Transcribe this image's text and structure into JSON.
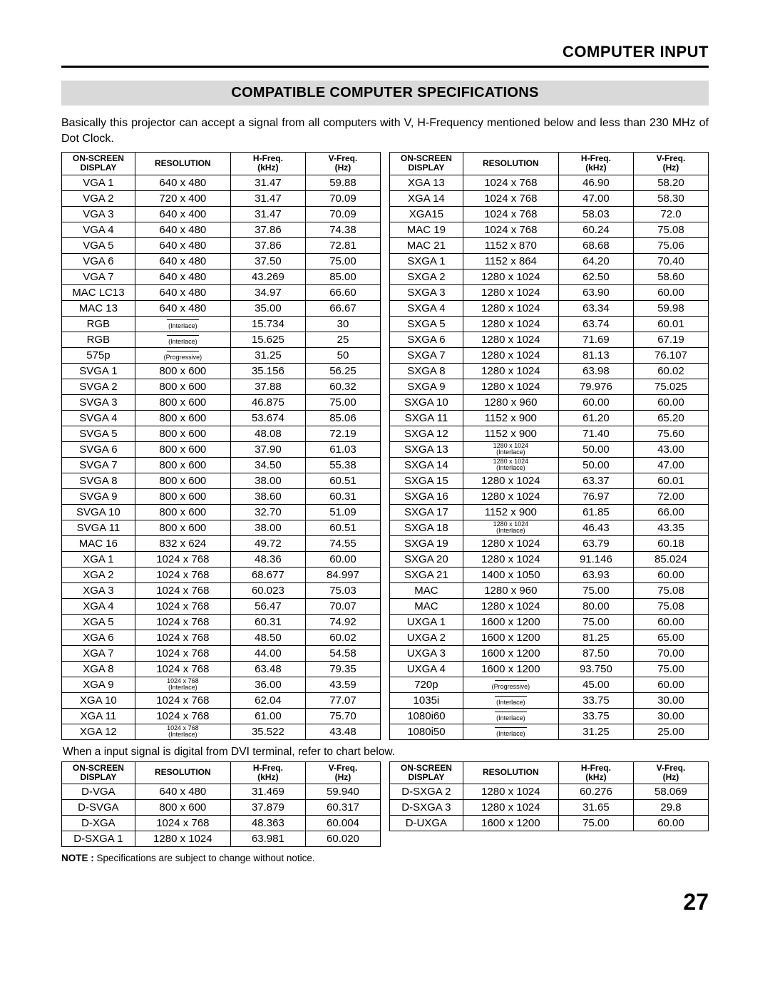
{
  "header": "COMPUTER INPUT",
  "section": "COMPATIBLE COMPUTER SPECIFICATIONS",
  "intro": "Basically this projector can accept a signal from all computers with V, H-Frequency mentioned below and less than 230 MHz of Dot Clock.",
  "table_headers": {
    "c1a": "ON-SCREEN",
    "c1b": "DISPLAY",
    "c2": "RESOLUTION",
    "c3a": "H-Freq.",
    "c3b": "(kHz)",
    "c4a": "V-Freq.",
    "c4b": "(Hz)"
  },
  "left_rows": [
    {
      "d": "VGA 1",
      "r": "640 x 480",
      "h": "31.47",
      "v": "59.88"
    },
    {
      "d": "VGA 2",
      "r": "720 x 400",
      "h": "31.47",
      "v": "70.09"
    },
    {
      "d": "VGA 3",
      "r": "640 x 400",
      "h": "31.47",
      "v": "70.09"
    },
    {
      "d": "VGA 4",
      "r": "640 x 480",
      "h": "37.86",
      "v": "74.38"
    },
    {
      "d": "VGA 5",
      "r": "640 x 480",
      "h": "37.86",
      "v": "72.81"
    },
    {
      "d": "VGA 6",
      "r": "640 x 480",
      "h": "37.50",
      "v": "75.00"
    },
    {
      "d": "VGA 7",
      "r": "640 x 480",
      "h": "43.269",
      "v": "85.00"
    },
    {
      "d": "MAC LC13",
      "r": "640 x 480",
      "h": "34.97",
      "v": "66.60"
    },
    {
      "d": "MAC 13",
      "r": "640 x 480",
      "h": "35.00",
      "v": "66.67"
    },
    {
      "d": "RGB",
      "r": "",
      "rnote": "(Interlace)",
      "dash": true,
      "h": "15.734",
      "v": "30"
    },
    {
      "d": "RGB",
      "r": "",
      "rnote": "(Interlace)",
      "dash": true,
      "h": "15.625",
      "v": "25"
    },
    {
      "d": "575p",
      "r": "",
      "rnote": "(Progressive)",
      "dash": true,
      "h": "31.25",
      "v": "50"
    },
    {
      "d": "SVGA 1",
      "r": "800 x 600",
      "h": "35.156",
      "v": "56.25"
    },
    {
      "d": "SVGA 2",
      "r": "800 x 600",
      "h": "37.88",
      "v": "60.32"
    },
    {
      "d": "SVGA 3",
      "r": "800 x 600",
      "h": "46.875",
      "v": "75.00"
    },
    {
      "d": "SVGA 4",
      "r": "800 x 600",
      "h": "53.674",
      "v": "85.06"
    },
    {
      "d": "SVGA 5",
      "r": "800 x 600",
      "h": "48.08",
      "v": "72.19"
    },
    {
      "d": "SVGA 6",
      "r": "800 x 600",
      "h": "37.90",
      "v": "61.03"
    },
    {
      "d": "SVGA 7",
      "r": "800 x 600",
      "h": "34.50",
      "v": "55.38"
    },
    {
      "d": "SVGA 8",
      "r": "800 x 600",
      "h": "38.00",
      "v": "60.51"
    },
    {
      "d": "SVGA 9",
      "r": "800 x 600",
      "h": "38.60",
      "v": "60.31"
    },
    {
      "d": "SVGA 10",
      "r": "800 x 600",
      "h": "32.70",
      "v": "51.09"
    },
    {
      "d": "SVGA 11",
      "r": "800 x 600",
      "h": "38.00",
      "v": "60.51"
    },
    {
      "d": "MAC 16",
      "r": "832 x 624",
      "h": "49.72",
      "v": "74.55"
    },
    {
      "d": "XGA 1",
      "r": "1024 x 768",
      "h": "48.36",
      "v": "60.00"
    },
    {
      "d": "XGA 2",
      "r": "1024 x 768",
      "h": "68.677",
      "v": "84.997"
    },
    {
      "d": "XGA 3",
      "r": "1024 x 768",
      "h": "60.023",
      "v": "75.03"
    },
    {
      "d": "XGA 4",
      "r": "1024 x 768",
      "h": "56.47",
      "v": "70.07"
    },
    {
      "d": "XGA 5",
      "r": "1024 x 768",
      "h": "60.31",
      "v": "74.92"
    },
    {
      "d": "XGA 6",
      "r": "1024 x 768",
      "h": "48.50",
      "v": "60.02"
    },
    {
      "d": "XGA 7",
      "r": "1024 x 768",
      "h": "44.00",
      "v": "54.58"
    },
    {
      "d": "XGA 8",
      "r": "1024 x 768",
      "h": "63.48",
      "v": "79.35"
    },
    {
      "d": "XGA 9",
      "r": "",
      "rtop": "1024 x 768",
      "rnote": "(Interlace)",
      "h": "36.00",
      "v": "43.59"
    },
    {
      "d": "XGA 10",
      "r": "1024 x 768",
      "h": "62.04",
      "v": "77.07"
    },
    {
      "d": "XGA 11",
      "r": "1024 x 768",
      "h": "61.00",
      "v": "75.70"
    },
    {
      "d": "XGA 12",
      "r": "",
      "rtop": "1024 x 768",
      "rnote": "(Interlace)",
      "h": "35.522",
      "v": "43.48"
    }
  ],
  "right_rows": [
    {
      "d": "XGA 13",
      "r": "1024 x 768",
      "h": "46.90",
      "v": "58.20"
    },
    {
      "d": "XGA 14",
      "r": "1024 x 768",
      "h": "47.00",
      "v": "58.30"
    },
    {
      "d": "XGA15",
      "r": "1024 x 768",
      "h": "58.03",
      "v": "72.0"
    },
    {
      "d": "MAC 19",
      "r": "1024 x 768",
      "h": "60.24",
      "v": "75.08"
    },
    {
      "d": "MAC 21",
      "r": "1152 x 870",
      "h": "68.68",
      "v": "75.06"
    },
    {
      "d": "SXGA 1",
      "r": "1152 x 864",
      "h": "64.20",
      "v": "70.40"
    },
    {
      "d": "SXGA 2",
      "r": "1280 x 1024",
      "h": "62.50",
      "v": "58.60"
    },
    {
      "d": "SXGA 3",
      "r": "1280 x 1024",
      "h": "63.90",
      "v": "60.00"
    },
    {
      "d": "SXGA 4",
      "r": "1280 x 1024",
      "h": "63.34",
      "v": "59.98"
    },
    {
      "d": "SXGA 5",
      "r": "1280 x 1024",
      "h": "63.74",
      "v": "60.01"
    },
    {
      "d": "SXGA 6",
      "r": "1280 x 1024",
      "h": "71.69",
      "v": "67.19"
    },
    {
      "d": "SXGA 7",
      "r": "1280 x 1024",
      "h": "81.13",
      "v": "76.107"
    },
    {
      "d": "SXGA 8",
      "r": "1280 x 1024",
      "h": "63.98",
      "v": "60.02"
    },
    {
      "d": "SXGA 9",
      "r": "1280 x 1024",
      "h": "79.976",
      "v": "75.025"
    },
    {
      "d": "SXGA 10",
      "r": "1280 x 960",
      "h": "60.00",
      "v": "60.00"
    },
    {
      "d": "SXGA 11",
      "r": "1152 x 900",
      "h": "61.20",
      "v": "65.20"
    },
    {
      "d": "SXGA 12",
      "r": "1152 x 900",
      "h": "71.40",
      "v": "75.60"
    },
    {
      "d": "SXGA 13",
      "r": "",
      "rtop": "1280 x 1024",
      "rnote": "(Interlace)",
      "h": "50.00",
      "v": "43.00"
    },
    {
      "d": "SXGA 14",
      "r": "",
      "rtop": "1280 x 1024",
      "rnote": "(Interlace)",
      "h": "50.00",
      "v": "47.00"
    },
    {
      "d": "SXGA 15",
      "r": "1280 x 1024",
      "h": "63.37",
      "v": "60.01"
    },
    {
      "d": "SXGA 16",
      "r": "1280 x 1024",
      "h": "76.97",
      "v": "72.00"
    },
    {
      "d": "SXGA 17",
      "r": "1152 x 900",
      "h": "61.85",
      "v": "66.00"
    },
    {
      "d": "SXGA 18",
      "r": "",
      "rtop": "1280 x 1024",
      "rnote": "(Interlace)",
      "h": "46.43",
      "v": "43.35"
    },
    {
      "d": "SXGA 19",
      "r": "1280 x 1024",
      "h": "63.79",
      "v": "60.18"
    },
    {
      "d": "SXGA 20",
      "r": "1280 x 1024",
      "h": "91.146",
      "v": "85.024"
    },
    {
      "d": "SXGA 21",
      "r": "1400 x 1050",
      "h": "63.93",
      "v": "60.00"
    },
    {
      "d": "MAC",
      "r": "1280 x 960",
      "h": "75.00",
      "v": "75.08"
    },
    {
      "d": "MAC",
      "r": "1280 x 1024",
      "h": "80.00",
      "v": "75.08"
    },
    {
      "d": "UXGA 1",
      "r": "1600 x 1200",
      "h": "75.00",
      "v": "60.00"
    },
    {
      "d": "UXGA 2",
      "r": "1600 x 1200",
      "h": "81.25",
      "v": "65.00"
    },
    {
      "d": "UXGA 3",
      "r": "1600 x 1200",
      "h": "87.50",
      "v": "70.00"
    },
    {
      "d": "UXGA 4",
      "r": "1600 x 1200",
      "h": "93.750",
      "v": "75.00"
    },
    {
      "d": "720p",
      "r": "",
      "rnote": "(Progressive)",
      "dash": true,
      "h": "45.00",
      "v": "60.00"
    },
    {
      "d": "1035i",
      "r": "",
      "rnote": "(Interlace)",
      "dash": true,
      "h": "33.75",
      "v": "30.00"
    },
    {
      "d": "1080i60",
      "r": "",
      "rnote": "(Interlace)",
      "dash": true,
      "h": "33.75",
      "v": "30.00"
    },
    {
      "d": "1080i50",
      "r": "",
      "rnote": "(Interlace)",
      "dash": true,
      "h": "31.25",
      "v": "25.00"
    }
  ],
  "mid_text": "When a input signal is digital from DVI terminal, refer to chart below.",
  "dvi_left": [
    {
      "d": "D-VGA",
      "r": "640 x 480",
      "h": "31.469",
      "v": "59.940"
    },
    {
      "d": "D-SVGA",
      "r": "800 x 600",
      "h": "37.879",
      "v": "60.317"
    },
    {
      "d": "D-XGA",
      "r": "1024 x 768",
      "h": "48.363",
      "v": "60.004"
    },
    {
      "d": "D-SXGA 1",
      "r": "1280 x 1024",
      "h": "63.981",
      "v": "60.020"
    }
  ],
  "dvi_right": [
    {
      "d": "D-SXGA 2",
      "r": "1280 x 1024",
      "h": "60.276",
      "v": "58.069"
    },
    {
      "d": "D-SXGA 3",
      "r": "1280 x 1024",
      "h": "31.65",
      "v": "29.8"
    },
    {
      "d": "D-UXGA",
      "r": "1600 x 1200",
      "h": "75.00",
      "v": "60.00"
    }
  ],
  "note_label": "NOTE :",
  "note_text": " Specifications are subject to change without notice.",
  "page_number": "27"
}
